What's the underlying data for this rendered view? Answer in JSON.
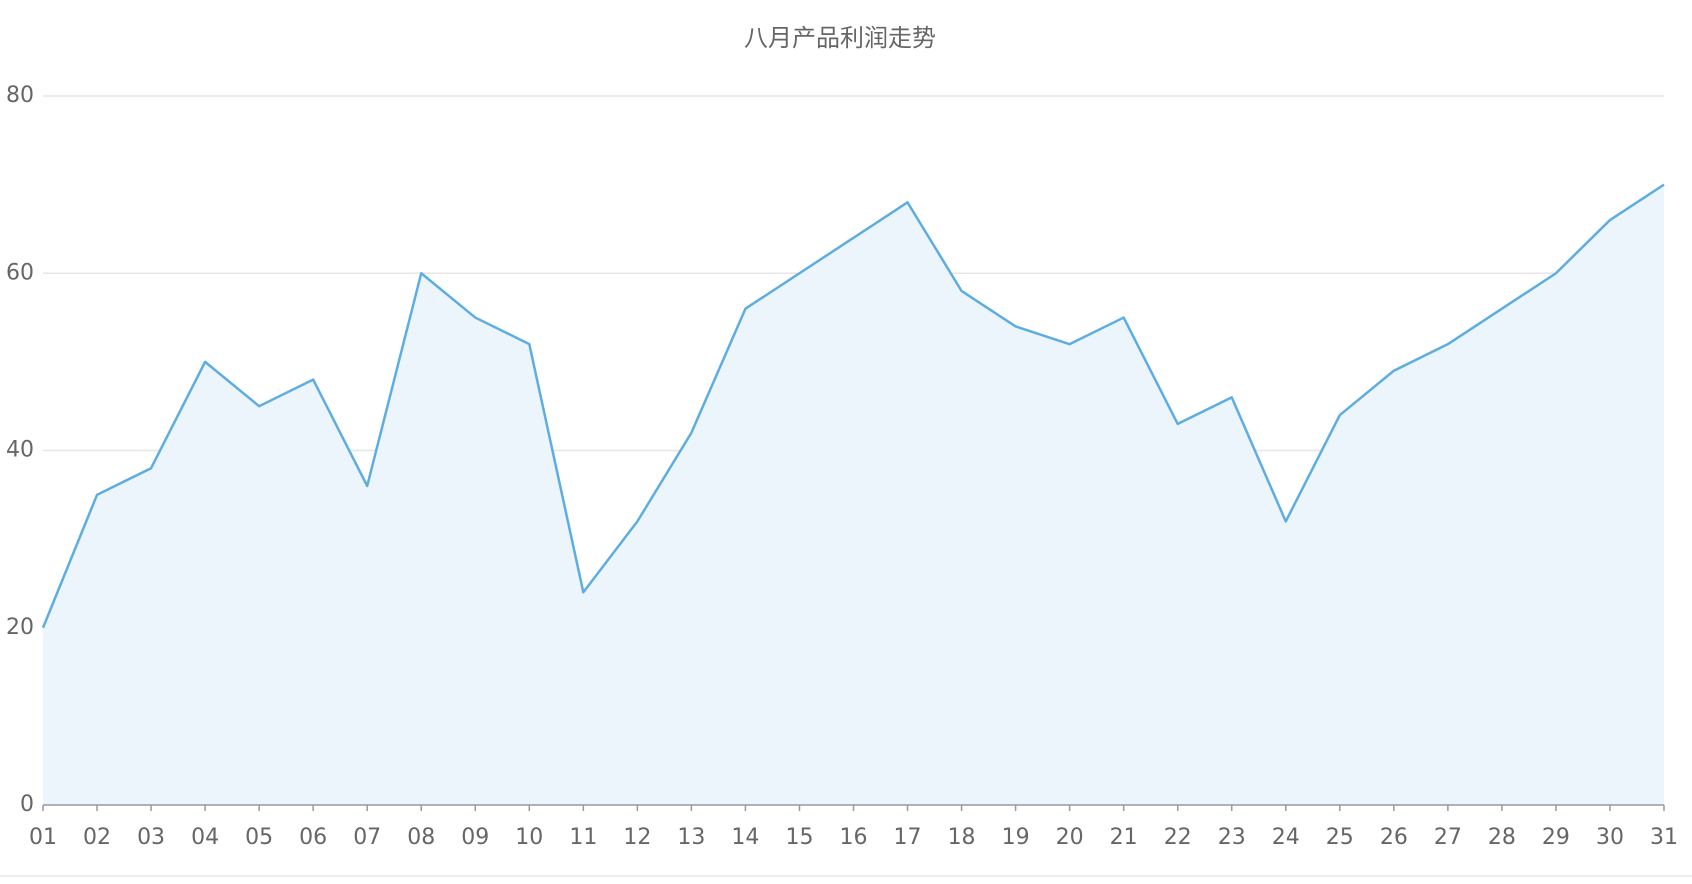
{
  "chart_data": {
    "type": "area",
    "title": "八月产品利润走势",
    "categories": [
      "01",
      "02",
      "03",
      "04",
      "05",
      "06",
      "07",
      "08",
      "09",
      "10",
      "11",
      "12",
      "13",
      "14",
      "15",
      "16",
      "17",
      "18",
      "19",
      "20",
      "21",
      "22",
      "23",
      "24",
      "25",
      "26",
      "27",
      "28",
      "29",
      "30",
      "31"
    ],
    "values": [
      20,
      35,
      38,
      50,
      45,
      48,
      36,
      60,
      55,
      52,
      24,
      32,
      42,
      56,
      60,
      64,
      68,
      58,
      54,
      52,
      55,
      43,
      46,
      32,
      44,
      49,
      52,
      56,
      60,
      66,
      70
    ],
    "color": "#5dade2",
    "fill": "#edf5fc",
    "ylim": [
      0,
      80
    ],
    "yticks": [
      0,
      20,
      40,
      60,
      80
    ],
    "grid": true
  }
}
